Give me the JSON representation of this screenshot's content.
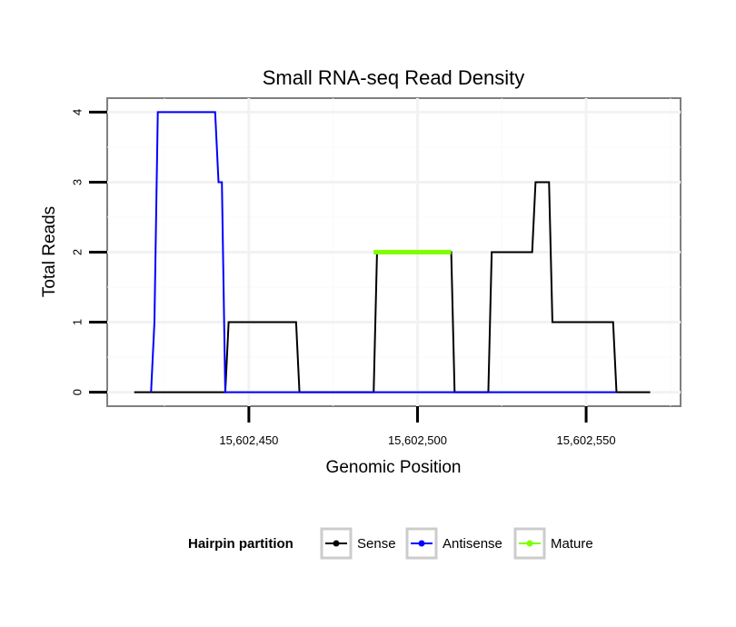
{
  "chart_data": {
    "type": "line",
    "title": "Small RNA-seq Read Density",
    "xlabel": "Genomic Position",
    "ylabel": "Total Reads",
    "xlim": [
      15602408,
      15602578
    ],
    "ylim": [
      -0.2,
      4.2
    ],
    "x_ticks": [
      15602450,
      15602500,
      15602550
    ],
    "x_tick_labels": [
      "15,602,450",
      "15,602,500",
      "15,602,550"
    ],
    "y_ticks": [
      0,
      1,
      2,
      3,
      4
    ],
    "y_tick_labels": [
      "0",
      "1",
      "2",
      "3",
      "4"
    ],
    "grid": true,
    "legend": {
      "title": "Hairpin partition",
      "position": "bottom",
      "entries": [
        "Sense",
        "Antisense",
        "Mature"
      ]
    },
    "series": [
      {
        "name": "Sense",
        "color": "#000000",
        "width": 2,
        "x": [
          15602416,
          15602443,
          15602444,
          15602464,
          15602465,
          15602487,
          15602488,
          15602510,
          15602511,
          15602521,
          15602522,
          15602534,
          15602535,
          15602539,
          15602540,
          15602558,
          15602559,
          15602569
        ],
        "y": [
          0,
          0,
          1,
          1,
          0,
          0,
          2,
          2,
          0,
          0,
          2,
          2,
          3,
          3,
          1,
          1,
          0,
          0
        ]
      },
      {
        "name": "Antisense",
        "color": "#0000ff",
        "width": 2,
        "x": [
          15602421,
          15602422,
          15602423,
          15602440,
          15602441,
          15602442,
          15602443,
          15602559
        ],
        "y": [
          0,
          1,
          4,
          4,
          3,
          3,
          0,
          0
        ]
      },
      {
        "name": "Mature",
        "color": "#7fff00",
        "width": 5,
        "x": [
          15602487,
          15602510
        ],
        "y": [
          2,
          2
        ]
      }
    ]
  }
}
